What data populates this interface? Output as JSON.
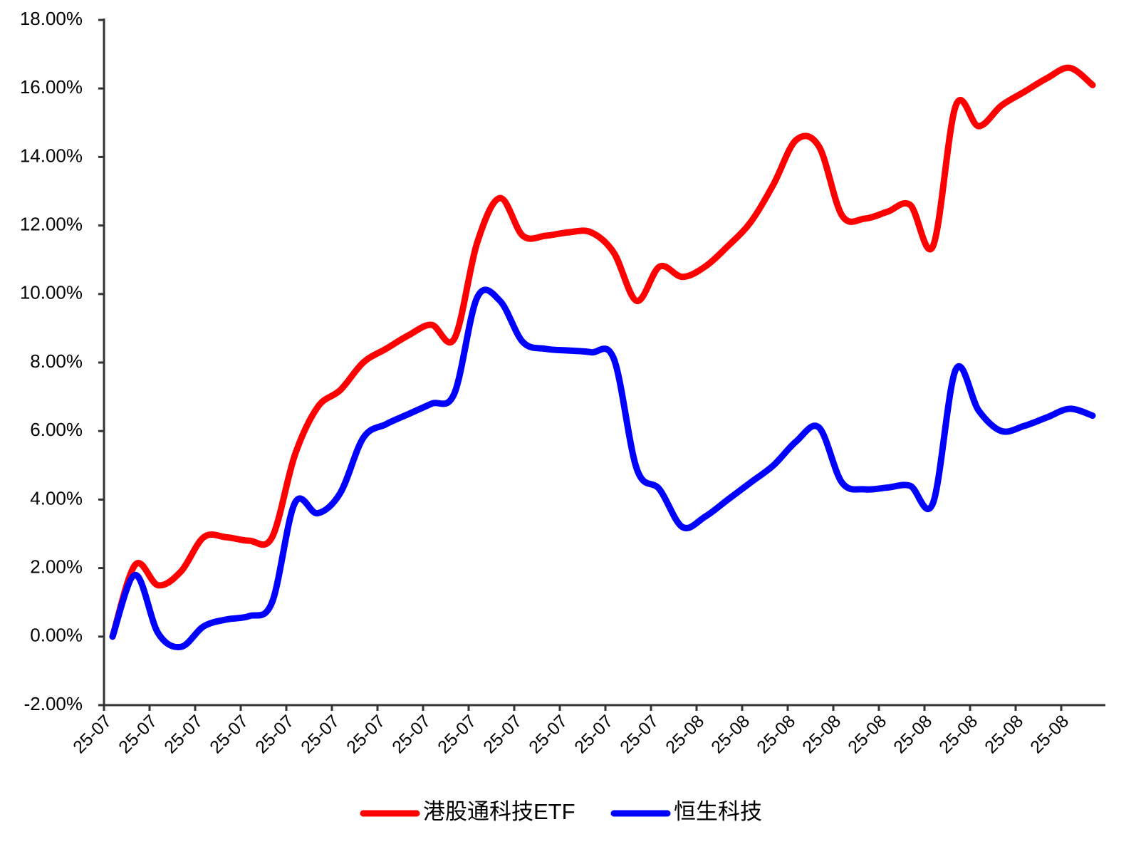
{
  "chart_data": {
    "type": "line",
    "categories": [
      "25-07",
      null,
      "25-07",
      null,
      "25-07",
      null,
      "25-07",
      null,
      "25-07",
      null,
      "25-07",
      null,
      "25-07",
      null,
      "25-07",
      null,
      "25-07",
      null,
      "25-07",
      null,
      "25-07",
      null,
      "25-07",
      null,
      "25-07",
      null,
      "25-08",
      null,
      "25-08",
      null,
      "25-08",
      null,
      "25-08",
      null,
      "25-08",
      null,
      "25-08",
      null,
      "25-08",
      null,
      "25-08",
      null,
      "25-08",
      null
    ],
    "series": [
      {
        "name": "港股通科技ETF",
        "color": "#ff0000",
        "values": [
          0,
          2.1,
          1.5,
          1.9,
          2.9,
          2.9,
          2.8,
          2.9,
          5.3,
          6.7,
          7.2,
          8.0,
          8.4,
          8.8,
          9.1,
          8.7,
          11.5,
          12.8,
          11.7,
          11.7,
          11.8,
          11.8,
          11.2,
          9.8,
          10.8,
          10.5,
          10.8,
          11.4,
          12.1,
          13.2,
          14.5,
          14.3,
          12.3,
          12.2,
          12.4,
          12.6,
          11.4,
          15.5,
          14.9,
          15.5,
          15.9,
          16.3,
          16.6,
          16.1
        ]
      },
      {
        "name": "恒生科技",
        "color": "#0000ff",
        "values": [
          0,
          1.8,
          0.1,
          -0.3,
          0.3,
          0.5,
          0.6,
          1.0,
          3.9,
          3.6,
          4.2,
          5.8,
          6.2,
          6.5,
          6.8,
          7.1,
          9.9,
          9.8,
          8.6,
          8.4,
          8.35,
          8.3,
          8.1,
          4.9,
          4.3,
          3.2,
          3.5,
          4.0,
          4.5,
          5.0,
          5.7,
          6.1,
          4.5,
          4.3,
          4.35,
          4.4,
          3.9,
          7.8,
          6.6,
          6.0,
          6.15,
          6.4,
          6.65,
          6.45
        ]
      }
    ],
    "ylim": [
      -2,
      18
    ],
    "yticks": [
      {
        "value": -2,
        "label": "-2.00%"
      },
      {
        "value": 0,
        "label": "0.00%"
      },
      {
        "value": 2,
        "label": "2.00%"
      },
      {
        "value": 4,
        "label": "4.00%"
      },
      {
        "value": 6,
        "label": "6.00%"
      },
      {
        "value": 8,
        "label": "8.00%"
      },
      {
        "value": 10,
        "label": "10.00%"
      },
      {
        "value": 12,
        "label": "12.00%"
      },
      {
        "value": 14,
        "label": "14.00%"
      },
      {
        "value": 16,
        "label": "16.00%"
      },
      {
        "value": 18,
        "label": "18.00%"
      }
    ],
    "legend": "bottom"
  }
}
